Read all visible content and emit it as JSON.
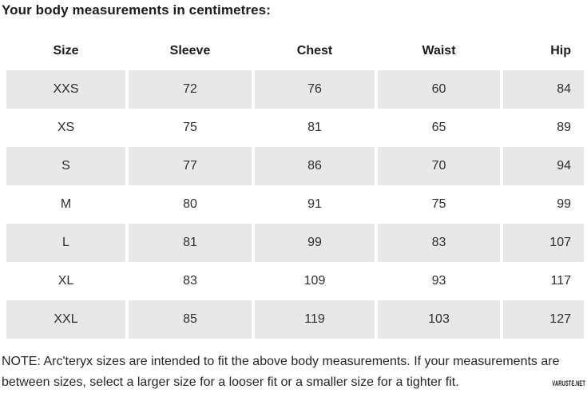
{
  "page": {
    "title": "Your body measurements in centimetres:"
  },
  "table": {
    "headers": [
      "Size",
      "Sleeve",
      "Chest",
      "Waist",
      "Hip"
    ],
    "rows": [
      [
        "XXS",
        "72",
        "76",
        "60",
        "84"
      ],
      [
        "XS",
        "75",
        "81",
        "65",
        "89"
      ],
      [
        "S",
        "77",
        "86",
        "70",
        "94"
      ],
      [
        "M",
        "80",
        "91",
        "75",
        "99"
      ],
      [
        "L",
        "81",
        "99",
        "83",
        "107"
      ],
      [
        "XL",
        "83",
        "109",
        "93",
        "117"
      ],
      [
        "XXL",
        "85",
        "119",
        "103",
        "127"
      ]
    ]
  },
  "note": {
    "lines": [
      "NOTE: Arc'teryx sizes are intended to fit the above body measurements. If your measurements are",
      "between sizes, select a larger size for a looser fit or a smaller size for a tighter fit."
    ]
  },
  "watermark": "VARUSTE.NET",
  "colors": {
    "stripe": "#e8e8e8",
    "text": "#2e2e2e",
    "heading": "#1c1c1c"
  },
  "chart_data": {
    "type": "table",
    "title": "Your body measurements in centimetres:",
    "units": "cm",
    "columns": [
      "Size",
      "Sleeve",
      "Chest",
      "Waist",
      "Hip"
    ],
    "rows": [
      [
        "XXS",
        72,
        76,
        60,
        84
      ],
      [
        "XS",
        75,
        81,
        65,
        89
      ],
      [
        "S",
        77,
        86,
        70,
        94
      ],
      [
        "M",
        80,
        91,
        75,
        99
      ],
      [
        "L",
        81,
        99,
        83,
        107
      ],
      [
        "XL",
        83,
        109,
        93,
        117
      ],
      [
        "XXL",
        85,
        119,
        103,
        127
      ]
    ]
  }
}
